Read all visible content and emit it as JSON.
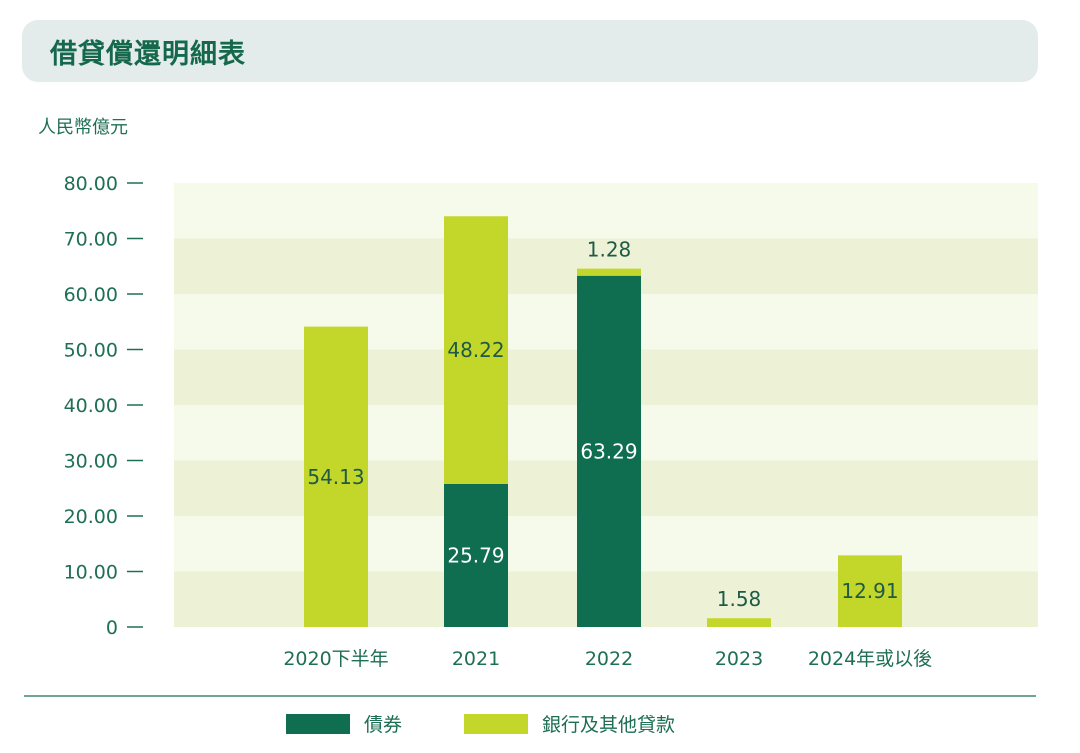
{
  "title": "借貸償還明細表",
  "colors": {
    "bonds": "#0e6e4f",
    "loans": "#c3d72b",
    "band_light": "#f6faea",
    "band_dark": "#edf2d7",
    "axis_text": "#1f6f55",
    "label_on_light": "#1e5a45",
    "label_on_dark": "#ffffff",
    "divider": "#3d8a6f"
  },
  "chart_data": {
    "type": "bar",
    "stacked": true,
    "ylabel": "人民幣億元",
    "ylim": [
      0,
      80
    ],
    "y_ticks": [
      "0",
      "10.00",
      "20.00",
      "30.00",
      "40.00",
      "50.00",
      "60.00",
      "70.00",
      "80.00"
    ],
    "categories": [
      "2020下半年",
      "2021",
      "2022",
      "2023",
      "2024年或以後"
    ],
    "series": [
      {
        "name": "債券",
        "values": [
          0,
          25.79,
          63.29,
          0,
          0
        ]
      },
      {
        "name": "銀行及其他貸款",
        "values": [
          54.13,
          48.22,
          1.28,
          1.58,
          12.91
        ]
      }
    ],
    "data_labels": {
      "bonds": [
        "",
        "25.79",
        "63.29",
        "",
        ""
      ],
      "loans": [
        "54.13",
        "48.22",
        "1.28",
        "1.58",
        "12.91"
      ]
    },
    "legend_position": "bottom"
  }
}
